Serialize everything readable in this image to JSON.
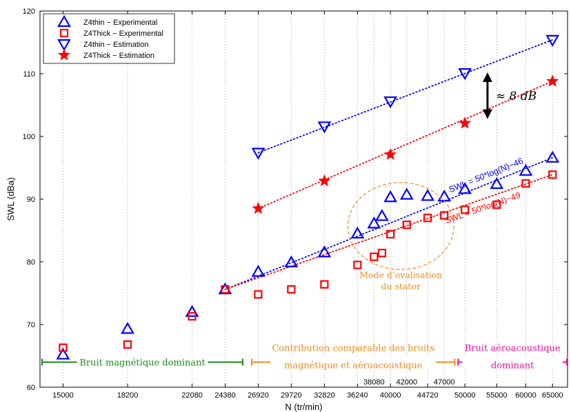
{
  "chart_data": {
    "type": "scatter",
    "xlabel": "N (tr/min)",
    "ylabel": "SWL (dBa)",
    "ylim": [
      60,
      120
    ],
    "y_ticks": [
      60,
      70,
      80,
      90,
      100,
      110,
      120
    ],
    "x_scale": "log",
    "x_ticks": [
      15000,
      18200,
      22080,
      24380,
      26920,
      29720,
      32820,
      36240,
      40000,
      44720,
      50000,
      55000,
      60000,
      65000
    ],
    "x_ticks_extra": [
      38080,
      42000,
      47000
    ],
    "grid": "vertical dotted",
    "legend_position": "top-left",
    "series": [
      {
        "name": "Z4thin − Experimental",
        "marker": "triangle-up",
        "color": "#0000ff",
        "points": [
          [
            15000,
            65.2
          ],
          [
            18200,
            69.3
          ],
          [
            22080,
            72.0
          ],
          [
            24380,
            75.6
          ],
          [
            26920,
            78.4
          ],
          [
            29720,
            79.9
          ],
          [
            32820,
            81.5
          ],
          [
            36240,
            84.5
          ],
          [
            38080,
            86.1
          ],
          [
            39000,
            87.3
          ],
          [
            40000,
            90.3
          ],
          [
            42000,
            90.7
          ],
          [
            44720,
            90.5
          ],
          [
            47000,
            90.4
          ],
          [
            50000,
            91.6
          ],
          [
            55000,
            92.4
          ],
          [
            60000,
            94.5
          ],
          [
            65000,
            96.6
          ]
        ]
      },
      {
        "name": "Z4Thick − Experimental",
        "marker": "square",
        "color": "#ff0000",
        "points": [
          [
            15000,
            66.3
          ],
          [
            18200,
            66.8
          ],
          [
            22080,
            71.3
          ],
          [
            24380,
            75.6
          ],
          [
            26920,
            74.8
          ],
          [
            29720,
            75.6
          ],
          [
            32820,
            76.4
          ],
          [
            36240,
            79.5
          ],
          [
            38080,
            80.8
          ],
          [
            39000,
            81.4
          ],
          [
            40000,
            84.4
          ],
          [
            42000,
            85.9
          ],
          [
            44720,
            87.0
          ],
          [
            47000,
            87.4
          ],
          [
            50000,
            88.3
          ],
          [
            55000,
            89.1
          ],
          [
            60000,
            92.5
          ],
          [
            65000,
            93.9
          ]
        ]
      },
      {
        "name": "Z4thin − Estimation",
        "marker": "triangle-down",
        "color": "#0000ff",
        "points": [
          [
            26920,
            97.4
          ],
          [
            32820,
            101.6
          ],
          [
            40000,
            105.6
          ],
          [
            50000,
            110.1
          ],
          [
            65000,
            115.4
          ]
        ]
      },
      {
        "name": "Z4Thick − Estimation",
        "marker": "star",
        "color": "#ff0000",
        "points": [
          [
            26920,
            88.5
          ],
          [
            32820,
            92.9
          ],
          [
            40000,
            97.1
          ],
          [
            50000,
            102.1
          ],
          [
            65000,
            108.8
          ]
        ]
      }
    ],
    "fit_lines": [
      {
        "label": "SWL = 50*log(N)−46",
        "color": "#0000ff",
        "x_range": [
          24380,
          65000
        ],
        "y_range": [
          75.6,
          96.6
        ]
      },
      {
        "label": "SWL = 50*log(N)−49",
        "color": "#ff0000",
        "x_range": [
          24380,
          65000
        ],
        "y_range": [
          75.6,
          93.9
        ]
      },
      {
        "color": "#0000ff",
        "x_range": [
          26920,
          65000
        ],
        "y_range": [
          97.4,
          115.4
        ]
      },
      {
        "color": "#ff0000",
        "x_range": [
          26920,
          65000
        ],
        "y_range": [
          88.5,
          108.8
        ]
      }
    ],
    "annotations": {
      "gap_label": "≈ 8 dB",
      "gap_x": 53500,
      "gap_y": [
        103,
        110
      ],
      "ellipse_label_1": "Mode d’ovalisation",
      "ellipse_label_2": "du stator",
      "ellipse_color": "#ee8a1e",
      "regions": [
        {
          "label": "Bruit magnétique dominant",
          "color": "#1a8a1a",
          "x_from": 14000,
          "x_to": 25700
        },
        {
          "label_1": "Contribution comparable des bruits",
          "label_2": "magnétique et aéroacoustique",
          "color": "#ee8a1e",
          "x_from": 26400,
          "x_to": 48500
        },
        {
          "label_1": "Bruit aéroacoustique",
          "label_2": "dominant",
          "color": "#e0119a",
          "x_from": 49000,
          "x_to": 68000
        }
      ]
    }
  }
}
